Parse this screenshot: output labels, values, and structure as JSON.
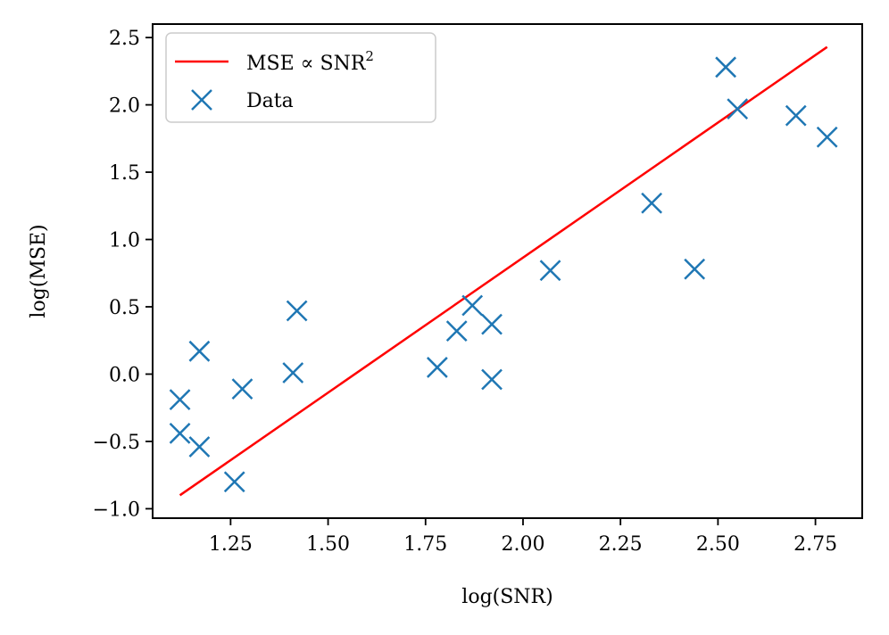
{
  "chart_data": {
    "type": "scatter",
    "title": "",
    "xlabel": "log(SNR)",
    "ylabel": "log(MSE)",
    "xlim": [
      1.05,
      2.87
    ],
    "ylim": [
      -1.07,
      2.6
    ],
    "xticks": [
      1.25,
      1.5,
      1.75,
      2.0,
      2.25,
      2.5,
      2.75
    ],
    "xtick_labels": [
      "1.25",
      "1.50",
      "1.75",
      "2.00",
      "2.25",
      "2.50",
      "2.75"
    ],
    "yticks": [
      -1.0,
      -0.5,
      0.0,
      0.5,
      1.0,
      1.5,
      2.0,
      2.5
    ],
    "ytick_labels": [
      "−1.0",
      "−0.5",
      "0.0",
      "0.5",
      "1.0",
      "1.5",
      "2.0",
      "2.5"
    ],
    "grid": false,
    "legend_position": "top-left",
    "series": [
      {
        "name": "MSE ∝ SNR",
        "name_superscript": "2",
        "kind": "line",
        "color": "#ff0000",
        "x": [
          1.12,
          2.78
        ],
        "y": [
          -0.9,
          2.43
        ]
      },
      {
        "name": "Data",
        "kind": "scatter",
        "marker": "x",
        "color": "#1f77b4",
        "x": [
          1.12,
          1.12,
          1.17,
          1.17,
          1.26,
          1.28,
          1.41,
          1.42,
          1.78,
          1.83,
          1.87,
          1.92,
          1.92,
          2.07,
          2.33,
          2.44,
          2.52,
          2.55,
          2.7,
          2.78
        ],
        "y": [
          -0.19,
          -0.44,
          0.17,
          -0.54,
          -0.8,
          -0.11,
          0.01,
          0.47,
          0.05,
          0.32,
          0.51,
          0.37,
          -0.04,
          0.77,
          1.27,
          0.78,
          2.28,
          1.97,
          1.92,
          1.76
        ]
      }
    ]
  }
}
